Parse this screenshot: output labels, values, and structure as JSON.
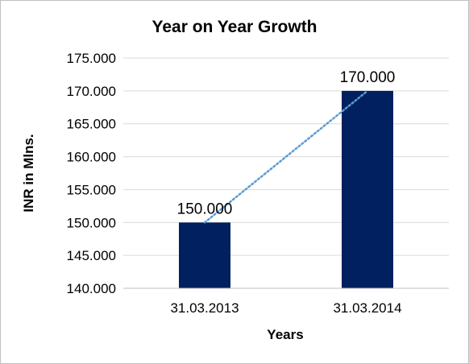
{
  "chart_data": {
    "type": "bar",
    "title": "Year on Year Growth",
    "xlabel": "Years",
    "ylabel": "INR in Mlns.",
    "categories": [
      "31.03.2013",
      "31.03.2014"
    ],
    "values": [
      150.0,
      170.0
    ],
    "value_labels": [
      "150.000",
      "170.000"
    ],
    "ylim": [
      140,
      175
    ],
    "yticks": [
      140,
      145,
      150,
      155,
      160,
      165,
      170,
      175
    ],
    "ytick_labels": [
      "140.000",
      "145.000",
      "150.000",
      "155.000",
      "160.000",
      "165.000",
      "170.000",
      "175.000"
    ],
    "grid": true,
    "legend": "none",
    "trendline": {
      "type": "linear",
      "style": "dotted",
      "color": "#5b9bd5"
    },
    "colors": {
      "bar": "#002060",
      "grid": "#d9d9d9",
      "axis": "#bfbfbf"
    }
  }
}
